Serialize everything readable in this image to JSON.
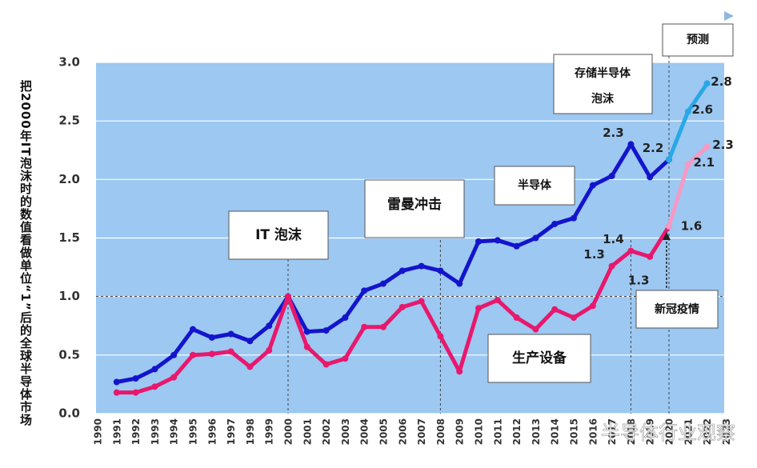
{
  "chart_data": {
    "type": "line",
    "y_label": "把2000年IT泡沫时的数值看做单位“1”后的全球半导体市场",
    "categories": [
      "1990",
      "1991",
      "1992",
      "1993",
      "1994",
      "1995",
      "1996",
      "1997",
      "1998",
      "1999",
      "2000",
      "2001",
      "2002",
      "2003",
      "2004",
      "2005",
      "2006",
      "2007",
      "2008",
      "2009",
      "2010",
      "2011",
      "2012",
      "2013",
      "2014",
      "2015",
      "2016",
      "2017",
      "2018",
      "2019",
      "2020",
      "2021",
      "2022",
      "2023"
    ],
    "series": [
      {
        "name": "半导体",
        "color": "#1414cc",
        "values": [
          null,
          0.27,
          0.3,
          0.38,
          0.5,
          0.72,
          0.65,
          0.68,
          0.62,
          0.75,
          1.0,
          0.7,
          0.71,
          0.82,
          1.05,
          1.11,
          1.22,
          1.26,
          1.22,
          1.11,
          1.47,
          1.48,
          1.43,
          1.5,
          1.62,
          1.67,
          1.95,
          2.03,
          2.3,
          2.02,
          2.17,
          null,
          null,
          null
        ],
        "value_labels": [
          null,
          null,
          null,
          null,
          null,
          null,
          null,
          null,
          null,
          null,
          null,
          null,
          null,
          null,
          null,
          null,
          null,
          null,
          null,
          null,
          null,
          null,
          null,
          null,
          null,
          null,
          null,
          null,
          "2.3",
          null,
          "2.2",
          null,
          null,
          null
        ]
      },
      {
        "name": "半导体（预测）",
        "color": "#29a8e6",
        "values": [
          null,
          null,
          null,
          null,
          null,
          null,
          null,
          null,
          null,
          null,
          null,
          null,
          null,
          null,
          null,
          null,
          null,
          null,
          null,
          null,
          null,
          null,
          null,
          null,
          null,
          null,
          null,
          null,
          null,
          null,
          2.17,
          2.58,
          2.82,
          null
        ],
        "value_labels": [
          null,
          null,
          null,
          null,
          null,
          null,
          null,
          null,
          null,
          null,
          null,
          null,
          null,
          null,
          null,
          null,
          null,
          null,
          null,
          null,
          null,
          null,
          null,
          null,
          null,
          null,
          null,
          null,
          null,
          null,
          null,
          "2.6",
          "2.8",
          null
        ]
      },
      {
        "name": "生产设备",
        "color": "#e8186d",
        "values": [
          null,
          0.18,
          0.18,
          0.23,
          0.31,
          0.5,
          0.51,
          0.53,
          0.4,
          0.54,
          1.0,
          0.57,
          0.42,
          0.47,
          0.74,
          0.74,
          0.91,
          0.96,
          0.66,
          0.36,
          0.9,
          0.97,
          0.82,
          0.72,
          0.89,
          0.82,
          0.92,
          1.26,
          1.39,
          1.34,
          1.6,
          null,
          null,
          null
        ],
        "value_labels": [
          null,
          null,
          null,
          null,
          null,
          null,
          null,
          null,
          null,
          null,
          null,
          null,
          null,
          null,
          null,
          null,
          null,
          null,
          null,
          null,
          null,
          null,
          null,
          null,
          null,
          null,
          null,
          "1.3",
          "1.4",
          "1.3",
          "1.6",
          null,
          null,
          null
        ]
      },
      {
        "name": "生产设备（预测）",
        "color": "#f59ac4",
        "values": [
          null,
          null,
          null,
          null,
          null,
          null,
          null,
          null,
          null,
          null,
          null,
          null,
          null,
          null,
          null,
          null,
          null,
          null,
          null,
          null,
          null,
          null,
          null,
          null,
          null,
          null,
          null,
          null,
          null,
          null,
          1.6,
          2.13,
          2.28,
          null
        ],
        "value_labels": [
          null,
          null,
          null,
          null,
          null,
          null,
          null,
          null,
          null,
          null,
          null,
          null,
          null,
          null,
          null,
          null,
          null,
          null,
          null,
          null,
          null,
          null,
          null,
          null,
          null,
          null,
          null,
          null,
          null,
          null,
          null,
          "2.1",
          "2.3",
          null
        ]
      }
    ],
    "ylim": [
      0,
      3
    ],
    "yticks": [
      {
        "value": 0,
        "label": "0.0"
      },
      {
        "value": 0.5,
        "label": "0.5"
      },
      {
        "value": 1,
        "label": "1.0"
      },
      {
        "value": 1.5,
        "label": "1.5"
      },
      {
        "value": 2,
        "label": "2.0"
      },
      {
        "value": 2.5,
        "label": "2.5"
      },
      {
        "value": 3,
        "label": "3.0"
      }
    ],
    "grid": true,
    "reference_y": 1,
    "reference_x": [
      "2000",
      "2008",
      "2018",
      "2020"
    ],
    "annotations": [
      "IT 泡沫",
      "雷曼冲击",
      "半导体",
      "存储半导体",
      "泡沫",
      "预测",
      "新冠疫情",
      "生产设备"
    ],
    "watermark": "半导体行业观察"
  }
}
